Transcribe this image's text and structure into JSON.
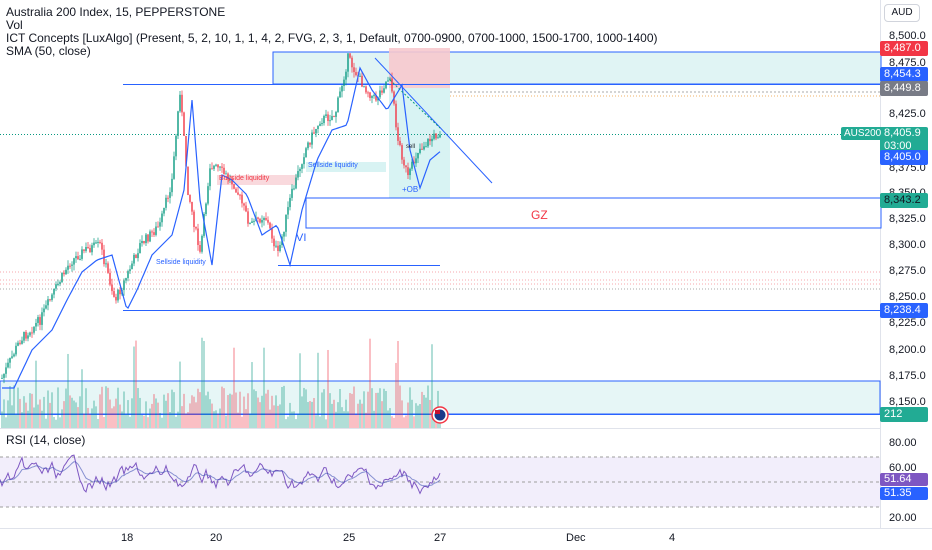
{
  "legend": {
    "symbol": "Australia 200 Index, 15, PEPPERSTONE",
    "vol": "Vol",
    "ict": "ICT Concepts [LuxAlgo] (Present, 5, 2, 10, 1, 1, 4, 2, FVG, 2, 3, 1, Default, 0700-0900, 0700-1000, 1500-1700, 1000-1400)",
    "sma": "SMA (50, close)",
    "rsi": "RSI (14, close)"
  },
  "currency": "AUD",
  "price_axis": {
    "ticks": [
      "8,500.0",
      "8,475.0",
      "8,425.0",
      "8,375.0",
      "8,350.0",
      "8,325.0",
      "8,300.0",
      "8,275.0",
      "8,250.0",
      "8,225.0",
      "8,200.0",
      "8,175.0",
      "8,150.0"
    ],
    "tag_high": "8,487.0",
    "tag_line": "8,454.3",
    "tag_gray": "8,449.8",
    "symbol_tag": "AUS200",
    "last_price": "8,405.9",
    "countdown": "03:00",
    "tag_blue_low": "8,405.0",
    "tag_gz": "8,343.2",
    "tag_bottom": "8,238.4",
    "volume_tag": "212"
  },
  "rsi_axis": {
    "ticks": [
      "80.00",
      "60.00",
      "20.00"
    ],
    "value_1": "51.64",
    "value_2": "51.35"
  },
  "time_axis": [
    "18",
    "20",
    "25",
    "27",
    "Dec",
    "4"
  ],
  "annotations": {
    "gz": "GZ",
    "vi": "VI",
    "ob": "+OB",
    "buyside": "Buyside liquidity",
    "sellside_1": "Sellside liquidity",
    "sellside_2": "Sellside liquidity",
    "mid": "sell"
  },
  "colors": {
    "up": "#089981",
    "down": "#f23645",
    "blue": "#2962ff",
    "sma": "#2962ff",
    "rsi": "#7e57c2",
    "teal_tag": "#22ab94",
    "red_tag": "#f23645"
  },
  "icons": {
    "flag": "australia-flag-icon"
  }
}
